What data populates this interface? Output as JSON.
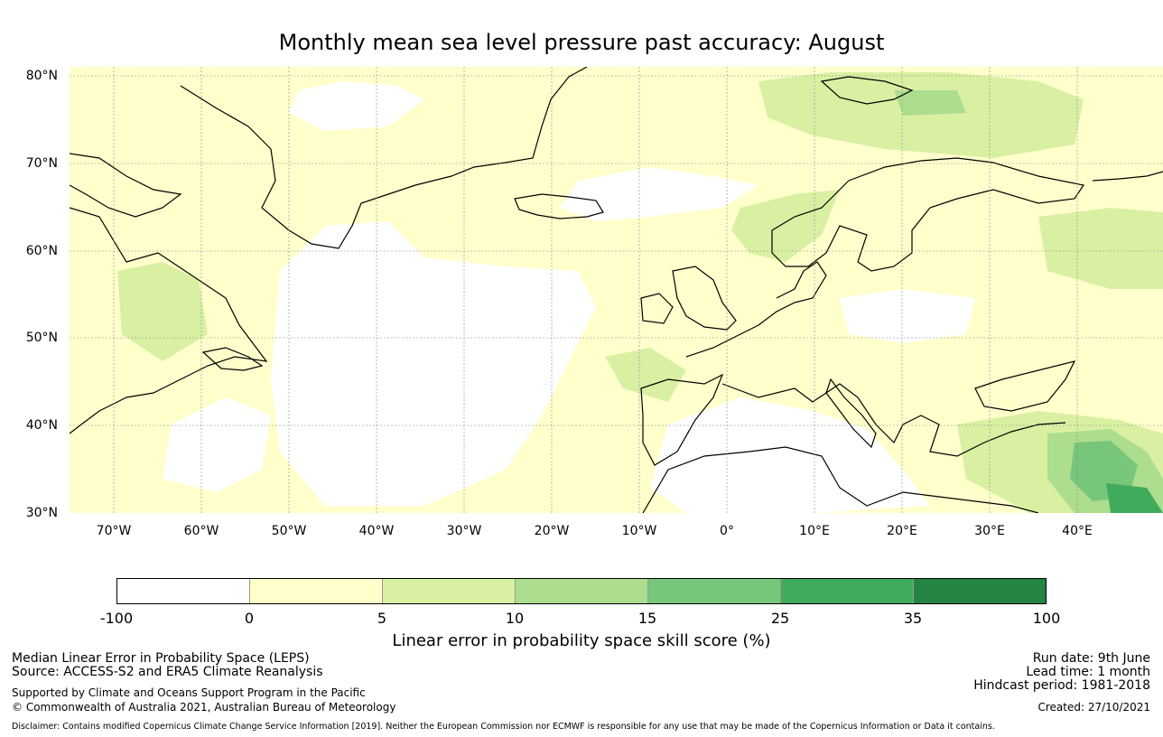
{
  "title": "Monthly mean sea level pressure past accuracy: August",
  "map": {
    "lat_labels": [
      "80°N",
      "70°N",
      "60°N",
      "50°N",
      "40°N",
      "30°N"
    ],
    "lon_labels": [
      "70°W",
      "60°W",
      "50°W",
      "40°W",
      "30°W",
      "20°W",
      "10°W",
      "0°",
      "10°E",
      "20°E",
      "30°E",
      "40°E"
    ],
    "lat_range": [
      30,
      81
    ],
    "lon_range": [
      -75,
      50
    ],
    "gridlines": true
  },
  "colorbar": {
    "ticks": [
      "-100",
      "0",
      "5",
      "10",
      "15",
      "25",
      "35",
      "100"
    ],
    "colors": [
      "#ffffff",
      "#ffffcc",
      "#d9f0a3",
      "#addd8e",
      "#78c679",
      "#41ab5d",
      "#238443"
    ],
    "label": "Linear error in probability space skill score (%)"
  },
  "footer": {
    "method": "Median Linear Error in Probability Space (LEPS)",
    "source": "Source: ACCESS-S2 and ERA5 Climate Reanalysis",
    "support": "Supported by Climate and Oceans Support Program in the Pacific",
    "copyright": "© Commonwealth of Australia 2021, Australian Bureau of Meteorology",
    "disclaimer": "Disclaimer: Contains modified Copernicus Climate Change Service Information [2019]. Neither the European Commission nor ECMWF is responsible for any use that may be made of the Copernicus Information or Data it contains.",
    "run_date": "Run date: 9th June",
    "lead_time": "Lead time: 1 month",
    "hindcast": "Hindcast period: 1981-2018",
    "created": "Created: 27/10/2021"
  }
}
